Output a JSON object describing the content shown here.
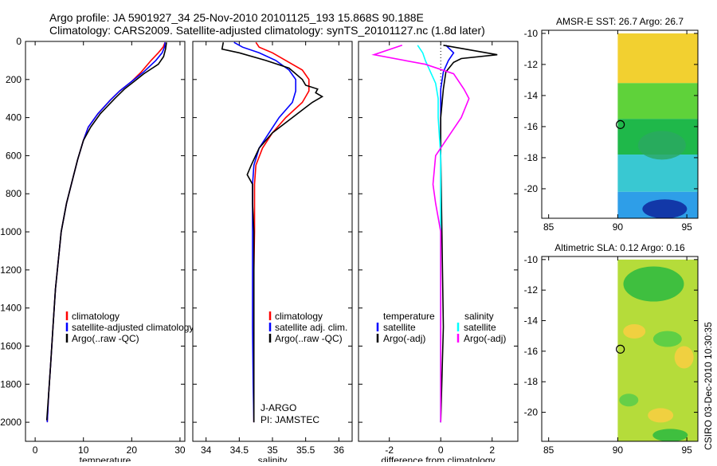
{
  "header": {
    "line1": "Argo profile: JA 5901927_34 25-Nov-2010 20101125_193 15.868S 90.188E",
    "line2": "Climatology: CARS2009. Satellite-adjusted climatology: synTS_20101127.nc (1.8d later)"
  },
  "side_stamp": "CSIRO 03-Dec-2010 10:30:35",
  "colors": {
    "clim": "#ff0000",
    "sat": "#0000ff",
    "argo": "#000000",
    "sal_sat": "#00ffff",
    "sal_argo": "#ff00ff"
  },
  "chart_data": [
    {
      "type": "line",
      "id": "temperature",
      "xlabel": "temperature",
      "xlim": [
        -2,
        31
      ],
      "ylim": [
        2100,
        0
      ],
      "xticks": [
        0,
        10,
        20,
        30
      ],
      "yticks": [
        0,
        200,
        400,
        600,
        800,
        1000,
        1200,
        1400,
        1600,
        1800,
        2000
      ],
      "legend": [
        "climatology",
        "satellite-adjusted climatology",
        "Argo(..raw -QC)"
      ],
      "series": [
        {
          "name": "climatology",
          "color": "clim",
          "points": [
            [
              26.9,
              5
            ],
            [
              26.5,
              30
            ],
            [
              25.5,
              60
            ],
            [
              24,
              100
            ],
            [
              22,
              160
            ],
            [
              20,
              210
            ],
            [
              17.5,
              260
            ],
            [
              15.5,
              310
            ],
            [
              13,
              380
            ],
            [
              11,
              450
            ],
            [
              10,
              520
            ],
            [
              8.8,
              620
            ],
            [
              7.8,
              720
            ],
            [
              6.5,
              850
            ],
            [
              5.4,
              1000
            ],
            [
              4.8,
              1150
            ],
            [
              4.2,
              1300
            ],
            [
              3.7,
              1500
            ],
            [
              3.2,
              1700
            ],
            [
              2.8,
              1850
            ],
            [
              2.5,
              2000
            ]
          ]
        },
        {
          "name": "satellite-adjusted climatology",
          "color": "sat",
          "points": [
            [
              26.9,
              5
            ],
            [
              26.8,
              30
            ],
            [
              26.3,
              60
            ],
            [
              25,
              100
            ],
            [
              22.5,
              160
            ],
            [
              20,
              210
            ],
            [
              17.5,
              260
            ],
            [
              15.5,
              310
            ],
            [
              13,
              380
            ],
            [
              11,
              450
            ],
            [
              10,
              520
            ],
            [
              8.8,
              620
            ],
            [
              7.8,
              720
            ],
            [
              6.5,
              850
            ],
            [
              5.4,
              1000
            ],
            [
              4.8,
              1150
            ],
            [
              4.2,
              1300
            ],
            [
              3.7,
              1500
            ],
            [
              3.2,
              1700
            ],
            [
              2.8,
              1850
            ],
            [
              2.5,
              2000
            ]
          ]
        },
        {
          "name": "Argo(..raw -QC)",
          "color": "argo",
          "points": [
            [
              27.2,
              5
            ],
            [
              27,
              40
            ],
            [
              26.6,
              80
            ],
            [
              25.5,
              120
            ],
            [
              22.5,
              170
            ],
            [
              20.5,
              210
            ],
            [
              18.5,
              250
            ],
            [
              16.5,
              300
            ],
            [
              13.5,
              380
            ],
            [
              11.5,
              450
            ],
            [
              10,
              520
            ],
            [
              8.8,
              620
            ],
            [
              7.8,
              720
            ],
            [
              6.5,
              850
            ],
            [
              5.4,
              1000
            ],
            [
              4.8,
              1150
            ],
            [
              4.2,
              1300
            ],
            [
              3.7,
              1500
            ],
            [
              3.2,
              1700
            ],
            [
              2.8,
              1850
            ],
            [
              2.4,
              1990
            ]
          ]
        }
      ]
    },
    {
      "type": "line",
      "id": "salinity",
      "xlabel": "salinity",
      "xlim": [
        33.8,
        36.2
      ],
      "ylim": [
        2100,
        0
      ],
      "xticks": [
        34,
        34.5,
        35,
        35.5,
        36
      ],
      "yticks": [
        0,
        200,
        400,
        600,
        800,
        1000,
        1200,
        1400,
        1600,
        1800,
        2000
      ],
      "legend": [
        "climatology",
        "satellite adj. clim.",
        "Argo(..raw -QC)"
      ],
      "annotation": [
        "J-ARGO",
        "PI: JAMSTEC"
      ],
      "series": [
        {
          "name": "climatology",
          "color": "clim",
          "points": [
            [
              34.75,
              5
            ],
            [
              34.8,
              30
            ],
            [
              35.0,
              60
            ],
            [
              35.2,
              100
            ],
            [
              35.45,
              150
            ],
            [
              35.55,
              200
            ],
            [
              35.55,
              260
            ],
            [
              35.45,
              320
            ],
            [
              35.2,
              400
            ],
            [
              35.0,
              480
            ],
            [
              34.85,
              560
            ],
            [
              34.75,
              650
            ],
            [
              34.73,
              750
            ],
            [
              34.73,
              850
            ],
            [
              34.73,
              1000
            ],
            [
              34.72,
              1200
            ],
            [
              34.72,
              1500
            ],
            [
              34.72,
              1800
            ],
            [
              34.72,
              2000
            ]
          ]
        },
        {
          "name": "satellite adj. clim.",
          "color": "sat",
          "points": [
            [
              34.42,
              5
            ],
            [
              34.55,
              30
            ],
            [
              34.8,
              60
            ],
            [
              35.05,
              100
            ],
            [
              35.25,
              150
            ],
            [
              35.35,
              200
            ],
            [
              35.35,
              260
            ],
            [
              35.3,
              320
            ],
            [
              35.1,
              400
            ],
            [
              34.95,
              480
            ],
            [
              34.8,
              560
            ],
            [
              34.72,
              650
            ],
            [
              34.7,
              750
            ],
            [
              34.7,
              850
            ],
            [
              34.7,
              1000
            ],
            [
              34.7,
              1200
            ],
            [
              34.7,
              1500
            ],
            [
              34.71,
              1800
            ],
            [
              34.72,
              2000
            ]
          ]
        },
        {
          "name": "Argo(..raw -QC)",
          "color": "argo",
          "points": [
            [
              34.26,
              5
            ],
            [
              34.24,
              40
            ],
            [
              34.5,
              60
            ],
            [
              34.9,
              100
            ],
            [
              35.25,
              140
            ],
            [
              35.45,
              200
            ],
            [
              35.5,
              230
            ],
            [
              35.68,
              250
            ],
            [
              35.65,
              270
            ],
            [
              35.75,
              290
            ],
            [
              35.6,
              320
            ],
            [
              35.3,
              400
            ],
            [
              35.0,
              480
            ],
            [
              34.8,
              560
            ],
            [
              34.68,
              650
            ],
            [
              34.62,
              700
            ],
            [
              34.7,
              750
            ],
            [
              34.7,
              850
            ],
            [
              34.72,
              1000
            ],
            [
              34.72,
              1200
            ],
            [
              34.72,
              1500
            ],
            [
              34.72,
              1800
            ],
            [
              34.72,
              2000
            ]
          ]
        }
      ]
    },
    {
      "type": "line",
      "id": "difference",
      "xlabel": "difference from climatology",
      "xlim": [
        -3.2,
        3.0
      ],
      "ylim": [
        2100,
        0
      ],
      "xticks": [
        -2,
        0,
        2
      ],
      "yticks": [
        0,
        200,
        400,
        600,
        800,
        1000,
        1200,
        1400,
        1600,
        1800,
        2000
      ],
      "legend_left_title": "temperature",
      "legend_right_title": "salinity",
      "legend_left": [
        "satellite",
        "Argo(-adj)"
      ],
      "legend_right": [
        "satellite",
        "Argo(-adj)"
      ],
      "series": [
        {
          "name": "temperature satellite",
          "color": "sat",
          "points": [
            [
              0.2,
              20
            ],
            [
              0.5,
              60
            ],
            [
              0.3,
              100
            ],
            [
              0.1,
              160
            ],
            [
              0,
              250
            ],
            [
              0,
              400
            ],
            [
              0,
              600
            ],
            [
              0,
              800
            ],
            [
              0,
              1000
            ],
            [
              0,
              1500
            ],
            [
              0,
              2000
            ]
          ]
        },
        {
          "name": "temperature Argo(-adj)",
          "color": "argo",
          "points": [
            [
              0.1,
              20
            ],
            [
              2.2,
              70
            ],
            [
              0.8,
              90
            ],
            [
              0.5,
              110
            ],
            [
              0.2,
              160
            ],
            [
              0.1,
              250
            ],
            [
              0,
              400
            ],
            [
              0,
              600
            ],
            [
              0.1,
              1500
            ],
            [
              0,
              2000
            ]
          ]
        },
        {
          "name": "salinity satellite",
          "color": "sal_sat",
          "points": [
            [
              -0.9,
              20
            ],
            [
              -0.7,
              60
            ],
            [
              -0.6,
              100
            ],
            [
              -0.4,
              160
            ],
            [
              -0.2,
              220
            ],
            [
              -0.1,
              300
            ],
            [
              -0.1,
              400
            ],
            [
              0,
              600
            ],
            [
              0,
              900
            ],
            [
              0,
              1200
            ],
            [
              0,
              1500
            ],
            [
              0,
              2000
            ]
          ]
        },
        {
          "name": "salinity Argo(-adj)",
          "color": "sal_argo",
          "points": [
            [
              -1.5,
              20
            ],
            [
              -2.6,
              70
            ],
            [
              -0.6,
              120
            ],
            [
              0.5,
              170
            ],
            [
              0.9,
              250
            ],
            [
              1.1,
              300
            ],
            [
              0.8,
              400
            ],
            [
              0.4,
              480
            ],
            [
              -0.2,
              600
            ],
            [
              -0.3,
              750
            ],
            [
              -0.2,
              850
            ],
            [
              0,
              1000
            ],
            [
              0,
              1500
            ],
            [
              0,
              2000
            ]
          ]
        }
      ]
    },
    {
      "type": "heatmap",
      "id": "sst_map",
      "title": "AMSR-E SST: 26.7 Argo: 26.7",
      "xlim": [
        84.5,
        95.8
      ],
      "ylim": [
        -21.9,
        -9.8
      ],
      "xticks": [
        85,
        90,
        95
      ],
      "yticks": [
        -10,
        -12,
        -14,
        -16,
        -18,
        -20
      ],
      "data_xmin": 90,
      "argo_marker": [
        90.188,
        -15.868
      ],
      "bands": [
        {
          "y_from": -10,
          "y_to": -13.2,
          "color": "#f2d030"
        },
        {
          "y_from": -13.2,
          "y_to": -15.5,
          "color": "#5fd23a"
        },
        {
          "y_from": -15.5,
          "y_to": -17.8,
          "color": "#1fb84a"
        },
        {
          "y_from": -17.8,
          "y_to": -20.2,
          "color": "#39c8d2"
        },
        {
          "y_from": -20.2,
          "y_to": -21.9,
          "color": "#2e9ee8"
        }
      ]
    },
    {
      "type": "heatmap",
      "id": "sla_map",
      "title": "Altimetric SLA: 0.12 Argo: 0.16",
      "xlim": [
        84.5,
        95.8
      ],
      "ylim": [
        -21.9,
        -9.8
      ],
      "xticks": [
        85,
        90,
        95
      ],
      "yticks": [
        -10,
        -12,
        -14,
        -16,
        -18,
        -20
      ],
      "data_xmin": 90,
      "argo_marker": [
        90.188,
        -15.868
      ],
      "bands": [
        {
          "y_from": -10,
          "y_to": -21.9,
          "color": "#b5dc3a"
        }
      ]
    }
  ]
}
